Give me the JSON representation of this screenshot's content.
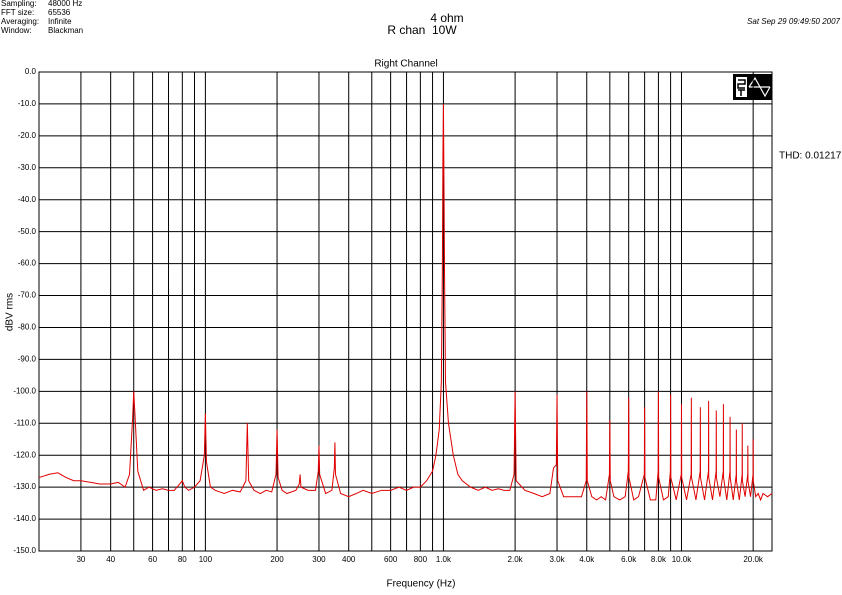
{
  "chart_data": {
    "type": "line",
    "title": "Right Channel",
    "header": {
      "title": "4 ohm",
      "subtitle": "R chan  10W",
      "date": "Sat Sep 29 09:49:50 2007",
      "settings": [
        [
          "Sampling:",
          "48000 Hz"
        ],
        [
          "FFT size:",
          "65536"
        ],
        [
          "Averaging:",
          "Infinite"
        ],
        [
          "Window:",
          "Blackman"
        ]
      ]
    },
    "annotation": "THD: 0.01217",
    "xlabel": "Frequency (Hz)",
    "ylabel": "dBV rms",
    "xscale": "log",
    "grid": true,
    "xlim": [
      20,
      24000
    ],
    "ylim": [
      -150,
      0
    ],
    "xticks": [
      30,
      40,
      60,
      80,
      100,
      200,
      300,
      400,
      600,
      800,
      {
        "value": 1000,
        "label": "1.0k"
      },
      {
        "value": 2000,
        "label": "2.0k"
      },
      {
        "value": 3000,
        "label": "3.0k"
      },
      {
        "value": 4000,
        "label": "4.0k"
      },
      {
        "value": 6000,
        "label": "6.0k"
      },
      {
        "value": 8000,
        "label": "8.0k"
      },
      {
        "value": 10000,
        "label": "10.0k"
      },
      {
        "value": 20000,
        "label": "20.0k"
      }
    ],
    "xgrid_minor": [
      50,
      70,
      90,
      500,
      700,
      900,
      5000,
      7000,
      9000
    ],
    "yticks": [
      {
        "value": 0,
        "label": "0.0"
      },
      {
        "value": -10,
        "label": "-10.0"
      },
      {
        "value": -20,
        "label": "-20.0"
      },
      {
        "value": -30,
        "label": "-30.0"
      },
      {
        "value": -40,
        "label": "-40.0"
      },
      {
        "value": -50,
        "label": "-50.0"
      },
      {
        "value": -60,
        "label": "-60.0"
      },
      {
        "value": -70,
        "label": "-70.0"
      },
      {
        "value": -80,
        "label": "-80.0"
      },
      {
        "value": -90,
        "label": "-90.0"
      },
      {
        "value": -100,
        "label": "-100.0"
      },
      {
        "value": -110,
        "label": "-110.0"
      },
      {
        "value": -120,
        "label": "-120.0"
      },
      {
        "value": -130,
        "label": "-130.0"
      },
      {
        "value": -140,
        "label": "-140.0"
      },
      {
        "value": -150,
        "label": "-150.0"
      }
    ],
    "x": [
      20,
      22,
      24,
      26,
      28,
      30,
      33,
      36,
      40,
      43,
      46,
      48,
      49.5,
      50,
      50.5,
      52,
      55,
      58,
      62,
      66,
      70,
      74,
      78,
      80,
      82,
      85,
      90,
      95,
      99,
      100,
      101,
      105,
      110,
      120,
      130,
      140,
      148,
      150,
      152,
      160,
      170,
      180,
      190,
      198,
      200,
      202,
      210,
      220,
      240,
      248,
      250,
      252,
      270,
      290,
      298,
      300,
      302,
      320,
      340,
      348,
      350,
      352,
      370,
      400,
      430,
      460,
      500,
      550,
      600,
      650,
      700,
      750,
      800,
      850,
      900,
      930,
      960,
      980,
      990,
      995,
      1000,
      1005,
      1010,
      1020,
      1050,
      1100,
      1150,
      1200,
      1300,
      1400,
      1500,
      1600,
      1700,
      1800,
      1900,
      1980,
      2000,
      2020,
      2200,
      2400,
      2600,
      2800,
      2900,
      2980,
      3000,
      3020,
      3200,
      3400,
      3600,
      3800,
      3980,
      4000,
      4020,
      4200,
      4400,
      4600,
      4800,
      4980,
      5000,
      5020,
      5200,
      5500,
      5800,
      5980,
      6000,
      6020,
      6300,
      6600,
      6980,
      7000,
      7020,
      7400,
      7800,
      7980,
      8000,
      8020,
      8400,
      8800,
      8980,
      9000,
      9020,
      9500,
      9980,
      10000,
      10020,
      10500,
      10980,
      11000,
      11020,
      11500,
      11980,
      12000,
      12020,
      12500,
      12980,
      13000,
      13020,
      13500,
      13980,
      14000,
      14020,
      14500,
      14980,
      15000,
      15020,
      15500,
      15980,
      16000,
      16020,
      16500,
      16980,
      17000,
      17020,
      17500,
      17980,
      18000,
      18020,
      18500,
      18980,
      19000,
      19020,
      19500,
      19980,
      20000,
      20020,
      20500,
      21000,
      21500,
      22000,
      23000,
      24000
    ],
    "series": [
      {
        "color": "#e00000",
        "values": [
          -127,
          -126,
          -125.5,
          -127,
          -128,
          -128,
          -128.5,
          -129,
          -129,
          -128.5,
          -130,
          -126,
          -108,
          -100,
          -106,
          -125,
          -131,
          -130,
          -131,
          -130.5,
          -131,
          -131,
          -129,
          -128,
          -130,
          -131,
          -130,
          -128,
          -120,
          -107,
          -122,
          -130,
          -131,
          -132,
          -131,
          -131.5,
          -128,
          -110,
          -128,
          -131,
          -132,
          -131,
          -131.5,
          -126,
          -112,
          -127,
          -131,
          -132,
          -131,
          -129,
          -126,
          -130,
          -131,
          -131,
          -125,
          -117,
          -126,
          -132,
          -131,
          -124,
          -116,
          -126,
          -132,
          -133,
          -132,
          -131,
          -132,
          -131,
          -131,
          -130,
          -131,
          -130,
          -130,
          -128,
          -125,
          -120,
          -112,
          -97,
          -60,
          -26,
          -10,
          -34,
          -60,
          -97,
          -110,
          -120,
          -126,
          -128,
          -130,
          -131,
          -130,
          -131,
          -130.5,
          -131,
          -131,
          -126,
          -100,
          -128,
          -131,
          -132,
          -133,
          -132,
          -124,
          -123,
          -101,
          -128,
          -133,
          -133,
          -133,
          -133,
          -128,
          -100,
          -128,
          -133,
          -134,
          -133,
          -134,
          -126,
          -109,
          -128,
          -133,
          -134,
          -133,
          -125,
          -102,
          -127,
          -134,
          -133,
          -126,
          -105,
          -127,
          -134,
          -134,
          -125,
          -100,
          -127,
          -134,
          -133,
          -125,
          -101,
          -127,
          -134,
          -126,
          -104,
          -127,
          -134,
          -126,
          -102,
          -127,
          -134,
          -125,
          -105,
          -127,
          -134,
          -125,
          -103,
          -127,
          -134,
          -125,
          -106,
          -127,
          -133,
          -125,
          -104,
          -127,
          -134,
          -125,
          -108,
          -127,
          -134,
          -126,
          -112,
          -128,
          -134,
          -126,
          -110,
          -128,
          -133,
          -126,
          -117,
          -128,
          -133,
          -126,
          -115,
          -128,
          -133,
          -132,
          -134,
          -132,
          -133,
          -132
        ]
      }
    ]
  }
}
